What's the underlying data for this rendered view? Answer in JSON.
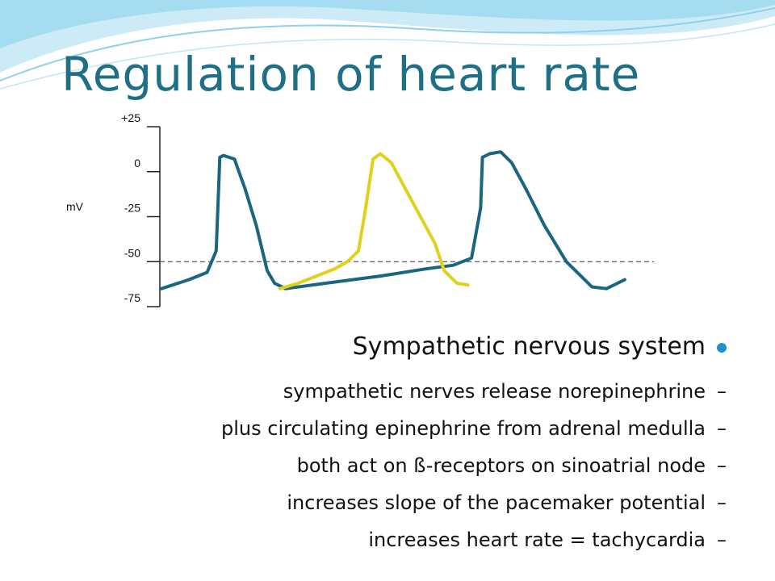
{
  "slide": {
    "title": "Regulation of heart rate",
    "heading": "Sympathetic nervous system",
    "points": [
      "sympathetic nerves release norepinephrine",
      "plus circulating epinephrine from adrenal medulla",
      "both act on  ß-receptors on sinoatrial node",
      "increases slope of the pacemaker potential",
      "increases heart rate = tachycardia"
    ],
    "dash": "–"
  },
  "chart_data": {
    "type": "line",
    "title": "",
    "xlabel": "",
    "ylabel": "mV",
    "yticks": [
      25,
      0,
      -25,
      -50,
      -75
    ],
    "ytick_labels": [
      "+25",
      "0",
      "-25",
      "-50",
      "-75"
    ],
    "ylim": [
      -75,
      25
    ],
    "threshold": -50,
    "grid": false,
    "series": [
      {
        "color": "#1a6680",
        "segments": [
          [
            [
              0,
              -65
            ],
            [
              15,
              -60
            ],
            [
              25,
              -56
            ],
            [
              30,
              -44
            ],
            [
              32,
              8
            ],
            [
              34,
              9
            ],
            [
              40,
              7
            ],
            [
              46,
              -10
            ],
            [
              52,
              -30
            ],
            [
              58,
              -55
            ],
            [
              62,
              -62
            ],
            [
              68,
              -65
            ],
            [
              90,
              -62
            ],
            [
              120,
              -58
            ],
            [
              145,
              -54
            ],
            [
              160,
              -52
            ],
            [
              170,
              -48
            ],
            [
              175,
              -20
            ],
            [
              176,
              8
            ],
            [
              180,
              10
            ],
            [
              186,
              11
            ],
            [
              192,
              5
            ],
            [
              200,
              -10
            ],
            [
              210,
              -30
            ],
            [
              222,
              -50
            ],
            [
              230,
              -58
            ],
            [
              236,
              -64
            ],
            [
              244,
              -65
            ],
            [
              254,
              -60
            ]
          ]
        ]
      },
      {
        "color": "#e0d21c",
        "segments": [
          [
            [
              65,
              -65
            ],
            [
              75,
              -62
            ],
            [
              85,
              -58
            ],
            [
              95,
              -54
            ],
            [
              102,
              -50
            ],
            [
              108,
              -44
            ],
            [
              112,
              -20
            ],
            [
              116,
              7
            ],
            [
              120,
              10
            ],
            [
              126,
              5
            ],
            [
              134,
              -10
            ],
            [
              142,
              -25
            ],
            [
              150,
              -40
            ],
            [
              155,
              -55
            ],
            [
              162,
              -62
            ],
            [
              168,
              -63
            ]
          ]
        ]
      }
    ]
  }
}
